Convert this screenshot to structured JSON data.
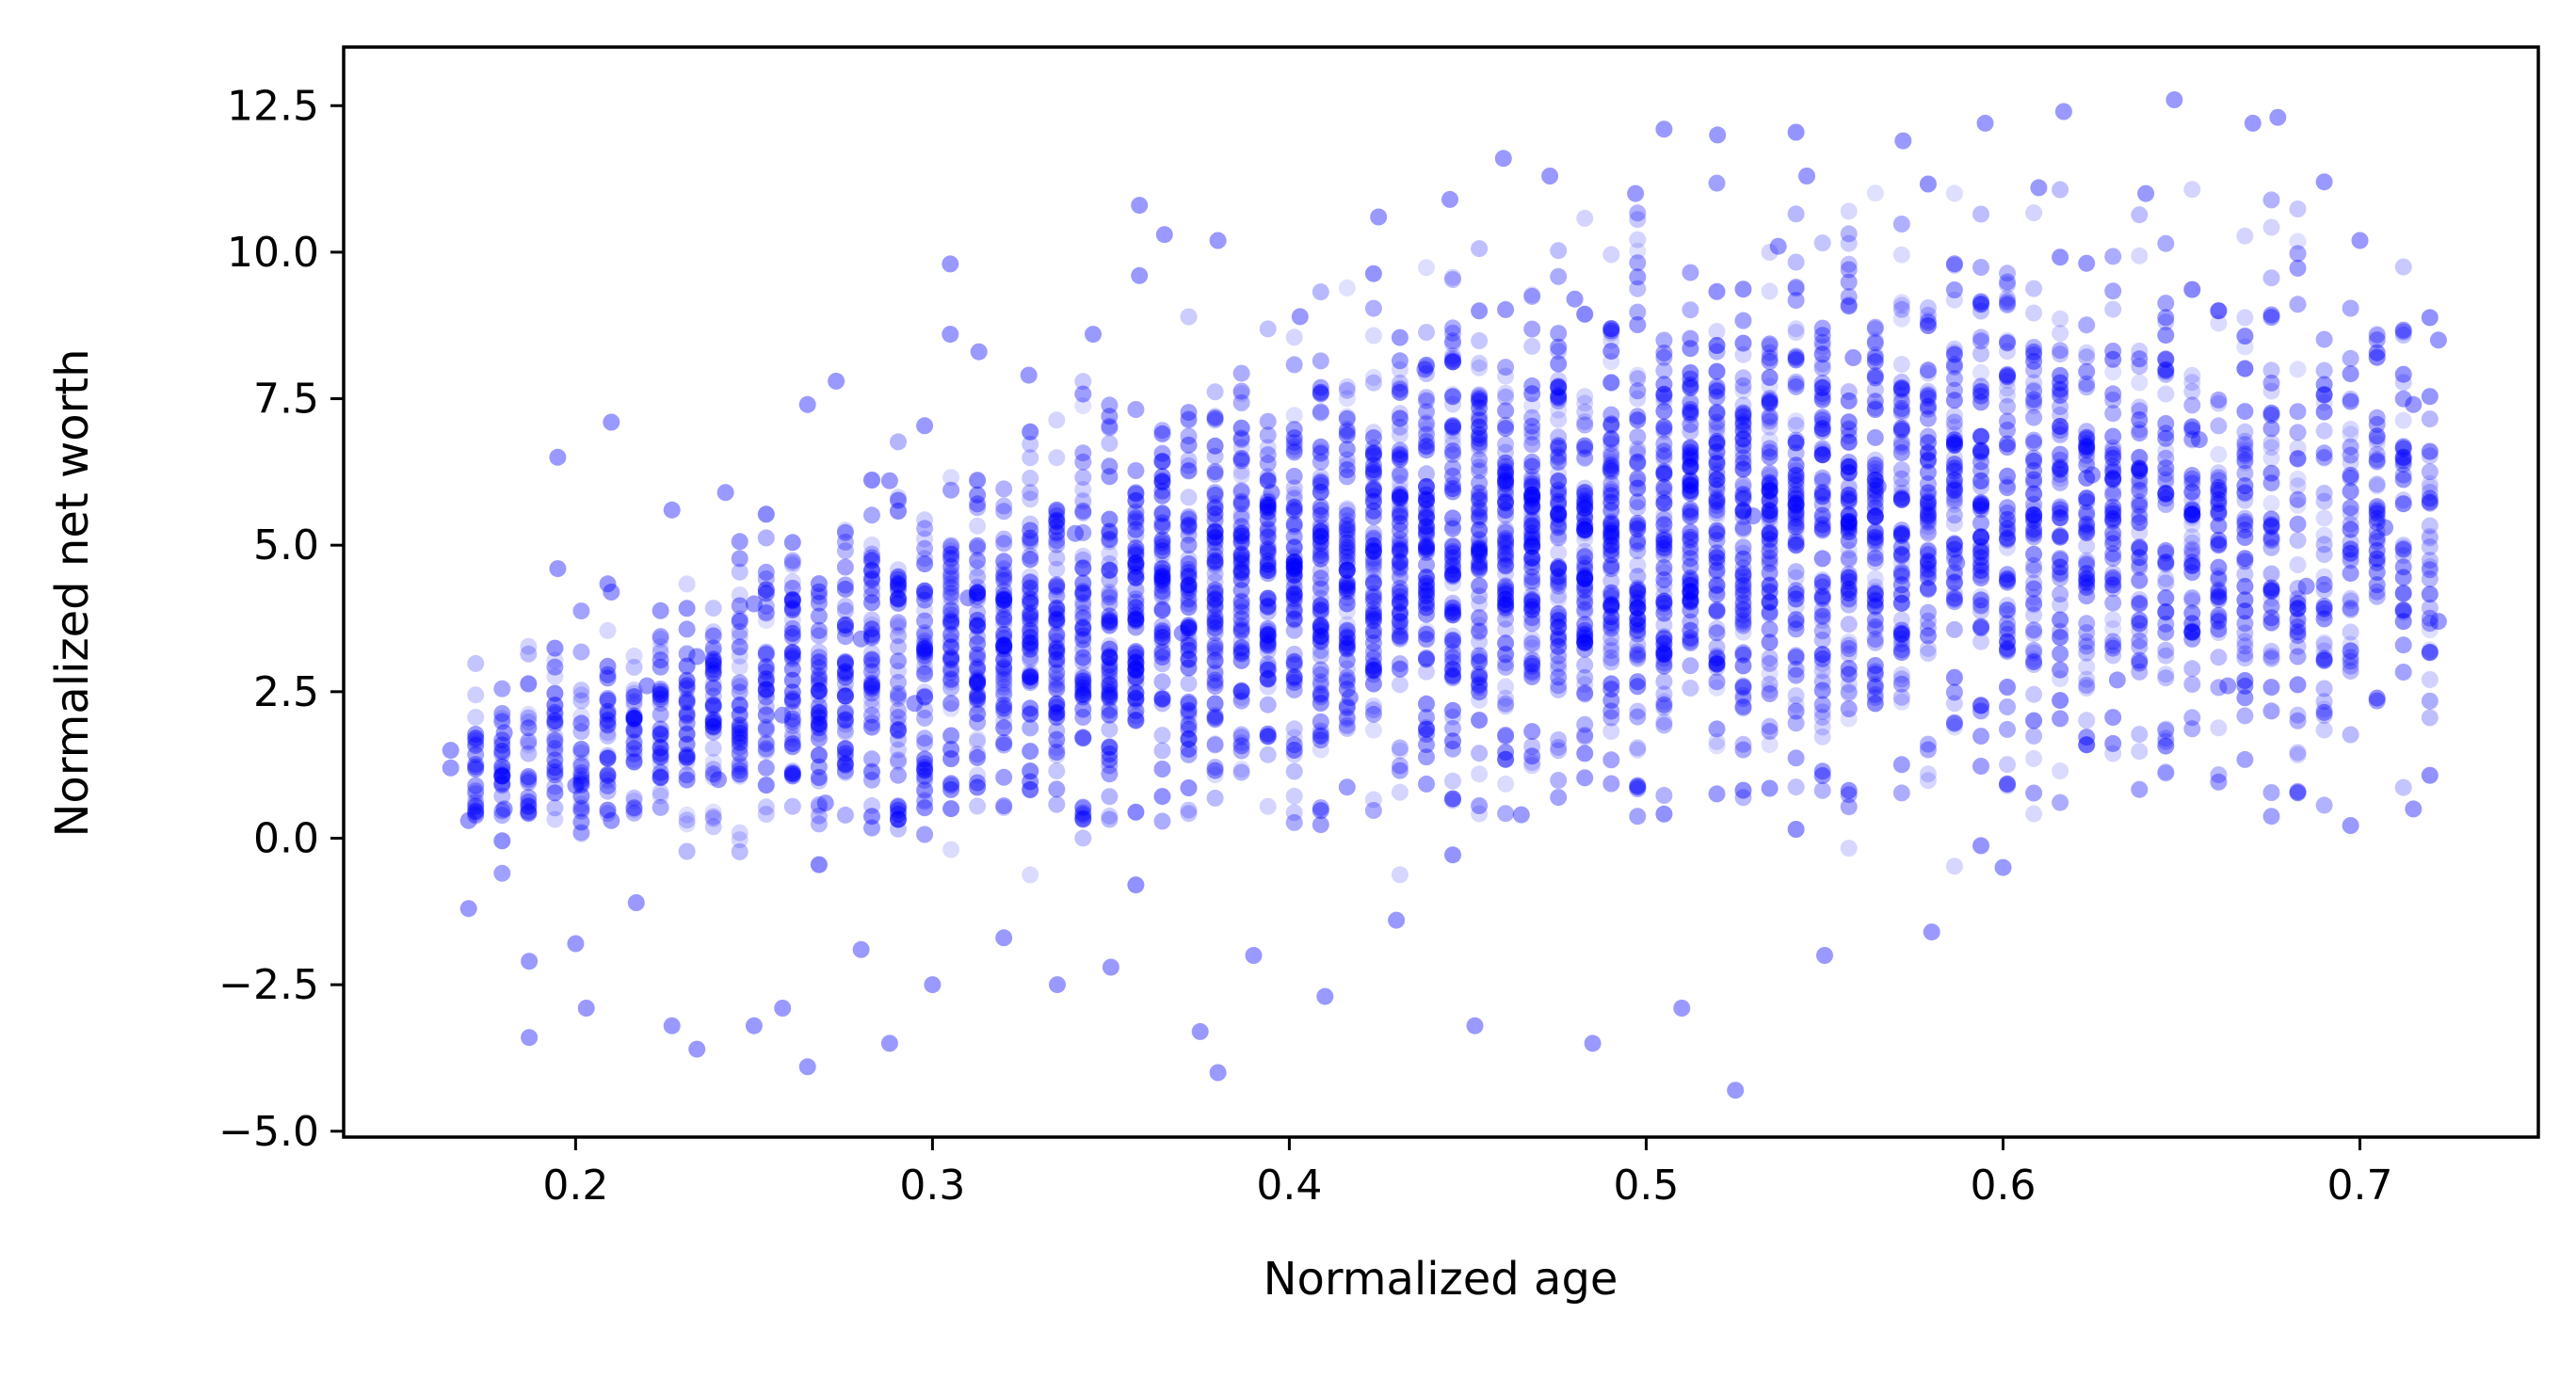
{
  "chart_data": {
    "type": "scatter",
    "title": "",
    "xlabel": "Normalized age",
    "ylabel": "Normalized net worth",
    "xlim": [
      0.135,
      0.75
    ],
    "ylim": [
      -5.1,
      13.5
    ],
    "x_ticks": [
      0.2,
      0.3,
      0.4,
      0.5,
      0.6,
      0.7
    ],
    "x_tick_labels": [
      "0.2",
      "0.3",
      "0.4",
      "0.5",
      "0.6",
      "0.7"
    ],
    "y_ticks": [
      -5.0,
      -2.5,
      0.0,
      2.5,
      5.0,
      7.5,
      10.0,
      12.5
    ],
    "y_tick_labels": [
      "−5.0",
      "−2.5",
      "0.0",
      "2.5",
      "5.0",
      "7.5",
      "10.0",
      "12.5"
    ],
    "grid": false,
    "legend": "none",
    "marker_color": "#0000ff",
    "marker_alpha": 0.4,
    "series": [
      {
        "values_summary": "dense cloud of thousands of points at discrete age values between 0.165 and 0.72",
        "points": [
          {
            "x": 0.165,
            "y": 1.2
          },
          {
            "x": 0.165,
            "y": 1.5
          },
          {
            "x": 0.17,
            "y": 0.3
          },
          {
            "x": 0.17,
            "y": -1.2
          },
          {
            "x": 0.18,
            "y": 0.5
          },
          {
            "x": 0.18,
            "y": 1.8
          },
          {
            "x": 0.187,
            "y": -3.4
          },
          {
            "x": 0.187,
            "y": -2.1
          },
          {
            "x": 0.195,
            "y": 6.5
          },
          {
            "x": 0.195,
            "y": 4.6
          },
          {
            "x": 0.2,
            "y": -1.8
          },
          {
            "x": 0.2,
            "y": 0.9
          },
          {
            "x": 0.203,
            "y": -2.9
          },
          {
            "x": 0.21,
            "y": 7.1
          },
          {
            "x": 0.21,
            "y": 4.2
          },
          {
            "x": 0.21,
            "y": 0.3
          },
          {
            "x": 0.217,
            "y": -1.1
          },
          {
            "x": 0.22,
            "y": 2.6
          },
          {
            "x": 0.227,
            "y": 5.6
          },
          {
            "x": 0.227,
            "y": -3.2
          },
          {
            "x": 0.234,
            "y": -3.6
          },
          {
            "x": 0.234,
            "y": 3.1
          },
          {
            "x": 0.24,
            "y": 1.0
          },
          {
            "x": 0.242,
            "y": 5.9
          },
          {
            "x": 0.25,
            "y": -3.2
          },
          {
            "x": 0.25,
            "y": 4.0
          },
          {
            "x": 0.258,
            "y": -2.9
          },
          {
            "x": 0.258,
            "y": 2.1
          },
          {
            "x": 0.265,
            "y": -3.9
          },
          {
            "x": 0.265,
            "y": 7.4
          },
          {
            "x": 0.27,
            "y": 0.6
          },
          {
            "x": 0.273,
            "y": 7.8
          },
          {
            "x": 0.28,
            "y": 3.4
          },
          {
            "x": 0.28,
            "y": -1.9
          },
          {
            "x": 0.288,
            "y": -3.5
          },
          {
            "x": 0.288,
            "y": 6.1
          },
          {
            "x": 0.295,
            "y": 2.3
          },
          {
            "x": 0.3,
            "y": -2.5
          },
          {
            "x": 0.305,
            "y": 9.8
          },
          {
            "x": 0.305,
            "y": 8.6
          },
          {
            "x": 0.31,
            "y": 4.1
          },
          {
            "x": 0.313,
            "y": 8.3
          },
          {
            "x": 0.32,
            "y": -1.7
          },
          {
            "x": 0.327,
            "y": 7.9
          },
          {
            "x": 0.335,
            "y": -2.5
          },
          {
            "x": 0.34,
            "y": 5.2
          },
          {
            "x": 0.345,
            "y": 8.6
          },
          {
            "x": 0.35,
            "y": -2.2
          },
          {
            "x": 0.358,
            "y": 10.8
          },
          {
            "x": 0.358,
            "y": 9.6
          },
          {
            "x": 0.365,
            "y": 10.3
          },
          {
            "x": 0.37,
            "y": 3.5
          },
          {
            "x": 0.375,
            "y": -3.3
          },
          {
            "x": 0.38,
            "y": -4.0
          },
          {
            "x": 0.38,
            "y": 10.2
          },
          {
            "x": 0.39,
            "y": -2.0
          },
          {
            "x": 0.395,
            "y": 5.9
          },
          {
            "x": 0.403,
            "y": 8.9
          },
          {
            "x": 0.41,
            "y": -2.7
          },
          {
            "x": 0.417,
            "y": 2.4
          },
          {
            "x": 0.425,
            "y": 10.6
          },
          {
            "x": 0.43,
            "y": -1.4
          },
          {
            "x": 0.438,
            "y": 8.0
          },
          {
            "x": 0.445,
            "y": 10.9
          },
          {
            "x": 0.452,
            "y": -3.2
          },
          {
            "x": 0.46,
            "y": 11.6
          },
          {
            "x": 0.465,
            "y": 0.4
          },
          {
            "x": 0.473,
            "y": 11.3
          },
          {
            "x": 0.48,
            "y": 9.2
          },
          {
            "x": 0.485,
            "y": -3.5
          },
          {
            "x": 0.49,
            "y": 6.3
          },
          {
            "x": 0.497,
            "y": 11.0
          },
          {
            "x": 0.505,
            "y": 12.1
          },
          {
            "x": 0.51,
            "y": -2.9
          },
          {
            "x": 0.52,
            "y": 12.0
          },
          {
            "x": 0.525,
            "y": -4.3
          },
          {
            "x": 0.53,
            "y": 5.5
          },
          {
            "x": 0.537,
            "y": 10.1
          },
          {
            "x": 0.545,
            "y": 11.3
          },
          {
            "x": 0.55,
            "y": -2.0
          },
          {
            "x": 0.558,
            "y": 8.2
          },
          {
            "x": 0.565,
            "y": 6.0
          },
          {
            "x": 0.572,
            "y": 11.9
          },
          {
            "x": 0.58,
            "y": -1.6
          },
          {
            "x": 0.587,
            "y": 4.7
          },
          {
            "x": 0.595,
            "y": 12.2
          },
          {
            "x": 0.6,
            "y": -0.5
          },
          {
            "x": 0.61,
            "y": 11.1
          },
          {
            "x": 0.617,
            "y": 12.4
          },
          {
            "x": 0.625,
            "y": 6.2
          },
          {
            "x": 0.632,
            "y": 2.7
          },
          {
            "x": 0.64,
            "y": 11.0
          },
          {
            "x": 0.648,
            "y": 12.6
          },
          {
            "x": 0.655,
            "y": 6.8
          },
          {
            "x": 0.663,
            "y": 2.6
          },
          {
            "x": 0.67,
            "y": 12.2
          },
          {
            "x": 0.677,
            "y": 12.3
          },
          {
            "x": 0.685,
            "y": 4.3
          },
          {
            "x": 0.69,
            "y": 11.2
          },
          {
            "x": 0.7,
            "y": 10.2
          },
          {
            "x": 0.707,
            "y": 5.3
          },
          {
            "x": 0.715,
            "y": 7.4
          },
          {
            "x": 0.715,
            "y": 0.5
          },
          {
            "x": 0.722,
            "y": 8.5
          },
          {
            "x": 0.722,
            "y": 3.7
          }
        ]
      }
    ]
  }
}
